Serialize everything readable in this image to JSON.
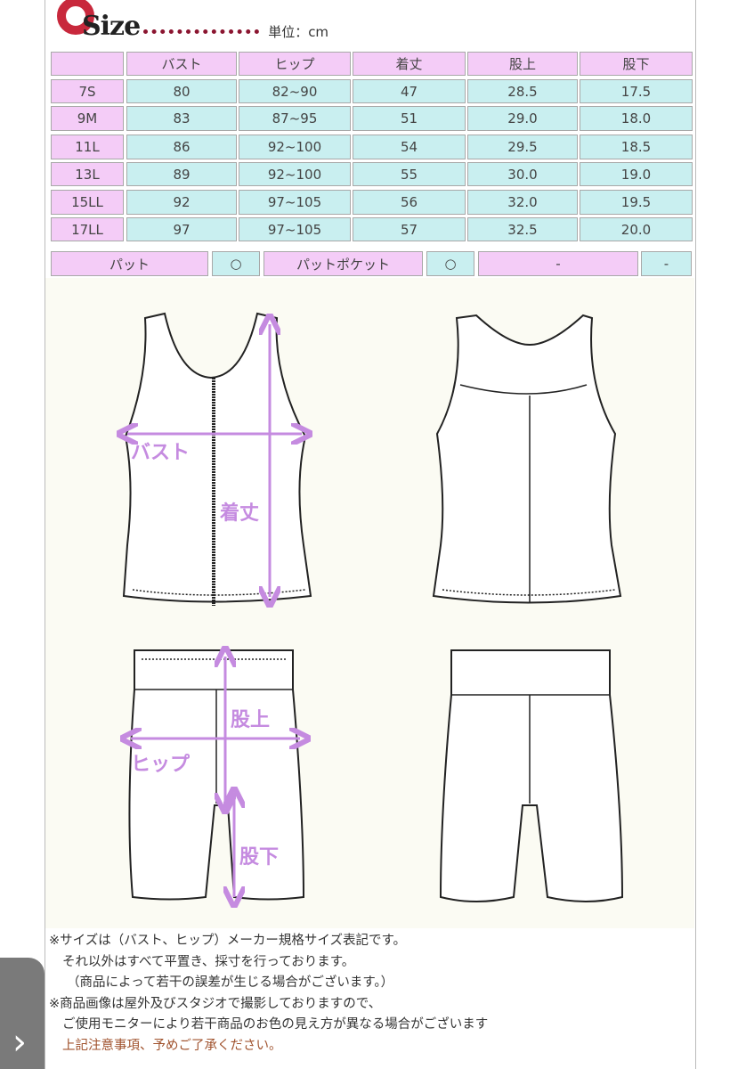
{
  "header": {
    "logo": "Size",
    "unit": "単位：cm"
  },
  "table": {
    "columns": [
      "",
      "バスト",
      "ヒップ",
      "着丈",
      "股上",
      "股下"
    ],
    "rows": [
      [
        "7S",
        "80",
        "82~90",
        "47",
        "28.5",
        "17.5"
      ],
      [
        "9M",
        "83",
        "87~95",
        "51",
        "29.0",
        "18.0"
      ],
      [
        "11L",
        "86",
        "92~100",
        "54",
        "29.5",
        "18.5"
      ],
      [
        "13L",
        "89",
        "92~100",
        "55",
        "30.0",
        "19.0"
      ],
      [
        "15LL",
        "92",
        "97~105",
        "56",
        "32.0",
        "19.5"
      ],
      [
        "17LL",
        "97",
        "97~105",
        "57",
        "32.5",
        "20.0"
      ]
    ]
  },
  "features": [
    {
      "label": "パット",
      "value": "○"
    },
    {
      "label": "パットポケット",
      "value": "○"
    },
    {
      "label": "-",
      "value": "-"
    }
  ],
  "diagram": {
    "bust": "バスト",
    "length": "着丈",
    "rise": "股上",
    "hip": "ヒップ",
    "inseam": "股下",
    "arrow_color": "#c58be0"
  },
  "notes": [
    "※サイズは（バスト、ヒップ）メーカー規格サイズ表記です。",
    "それ以外はすべて平置き、採寸を行っております。",
    "（商品によって若干の誤差が生じる場合がございます。）",
    "※商品画像は屋外及びスタジオで撮影しておりますので、",
    "ご使用モニターにより若干商品のお色の見え方が異なる場合がございます",
    "上記注意事項、予めご了承ください。"
  ],
  "nav": {
    "next_icon": "chevron-right-icon"
  },
  "colors": {
    "header_cell": "#f4ccf7",
    "value_cell": "#c9eff0",
    "logo_red": "#c8283c"
  }
}
